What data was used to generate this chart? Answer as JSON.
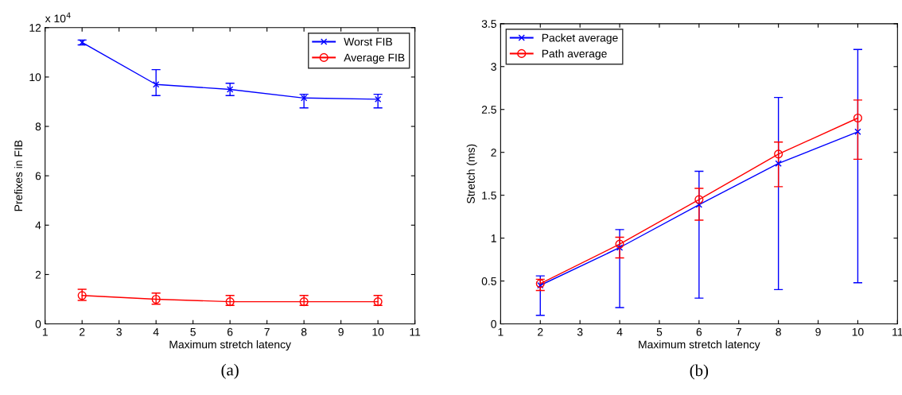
{
  "chart_data": [
    {
      "type": "line",
      "xlabel": "Maximum stretch latency",
      "ylabel": "Prefixes in FIB",
      "x": [
        2,
        4,
        6,
        8,
        10
      ],
      "xlim": [
        1,
        11
      ],
      "xticks": [
        1,
        2,
        3,
        4,
        5,
        6,
        7,
        8,
        9,
        10,
        11
      ],
      "ylim": [
        0,
        12
      ],
      "yticks": [
        0,
        2,
        4,
        6,
        8,
        10,
        12
      ],
      "grid": false,
      "legend": "top right",
      "line_style": "solid",
      "annotations": [
        "x 10$^{4}$",
        "(a)"
      ],
      "series": [
        {
          "name": "Worst FIB",
          "color": "#0000ff",
          "marker": "cross",
          "values": [
            11.4,
            9.7,
            9.5,
            9.15,
            9.1
          ],
          "errors": [
            [
              11.3,
              11.5
            ],
            [
              9.25,
              10.3
            ],
            [
              9.25,
              9.75
            ],
            [
              8.75,
              9.3
            ],
            [
              8.75,
              9.3
            ]
          ]
        },
        {
          "name": "Average FIB",
          "color": "#ff0000",
          "marker": "circle",
          "values": [
            1.15,
            1.0,
            0.9,
            0.9,
            0.9
          ],
          "errors": [
            [
              0.95,
              1.4
            ],
            [
              0.8,
              1.25
            ],
            [
              0.75,
              1.15
            ],
            [
              0.75,
              1.15
            ],
            [
              0.75,
              1.15
            ]
          ]
        }
      ]
    },
    {
      "type": "line",
      "xlabel": "Maximum stretch latency",
      "ylabel": "Stretch (ms)",
      "x": [
        2,
        4,
        6,
        8,
        10
      ],
      "xlim": [
        1,
        11
      ],
      "xticks": [
        1,
        2,
        3,
        4,
        5,
        6,
        7,
        8,
        9,
        10,
        11
      ],
      "ylim": [
        0,
        3.5
      ],
      "yticks": [
        0,
        0.5,
        1,
        1.5,
        2,
        2.5,
        3,
        3.5
      ],
      "grid": false,
      "legend": "top left",
      "line_style": "solid",
      "annotations": [
        "(b)"
      ],
      "series": [
        {
          "name": "Packet average",
          "color": "#0000ff",
          "marker": "cross",
          "values": [
            0.45,
            0.89,
            1.39,
            1.87,
            2.24
          ],
          "errors": [
            [
              0.1,
              0.56
            ],
            [
              0.19,
              1.1
            ],
            [
              0.3,
              1.78
            ],
            [
              0.4,
              2.64
            ],
            [
              0.48,
              3.2
            ]
          ]
        },
        {
          "name": "Path average",
          "color": "#ff0000",
          "marker": "circle",
          "values": [
            0.47,
            0.93,
            1.45,
            1.98,
            2.4
          ],
          "errors": [
            [
              0.39,
              0.52
            ],
            [
              0.77,
              1.01
            ],
            [
              1.21,
              1.58
            ],
            [
              1.6,
              2.12
            ],
            [
              1.92,
              2.61
            ]
          ]
        }
      ]
    }
  ]
}
